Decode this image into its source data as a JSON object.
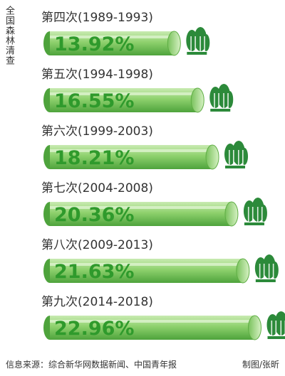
{
  "chart_data": {
    "type": "bar",
    "title": "全国森林清查",
    "unit": "%",
    "categories": [
      "第四次(1989-1993)",
      "第五次(1994-1998)",
      "第六次(1999-2003)",
      "第七次(2004-2008)",
      "第八次(2009-2013)",
      "第九次(2014-2018)"
    ],
    "values": [
      13.92,
      16.55,
      18.21,
      20.36,
      21.63,
      22.96
    ],
    "data_labels": [
      "13.92%",
      "16.55%",
      "18.21%",
      "20.36%",
      "21.63%",
      "22.96%"
    ],
    "colors": {
      "bar": "#8ed16d",
      "bar_dark": "#4ea33c",
      "label": "#2f9a2c",
      "tree": "#2c8a3a"
    }
  },
  "footer": {
    "source": "信息来源：综合新华网数据新闻、中国青年报",
    "credit": "制图/张昕"
  }
}
